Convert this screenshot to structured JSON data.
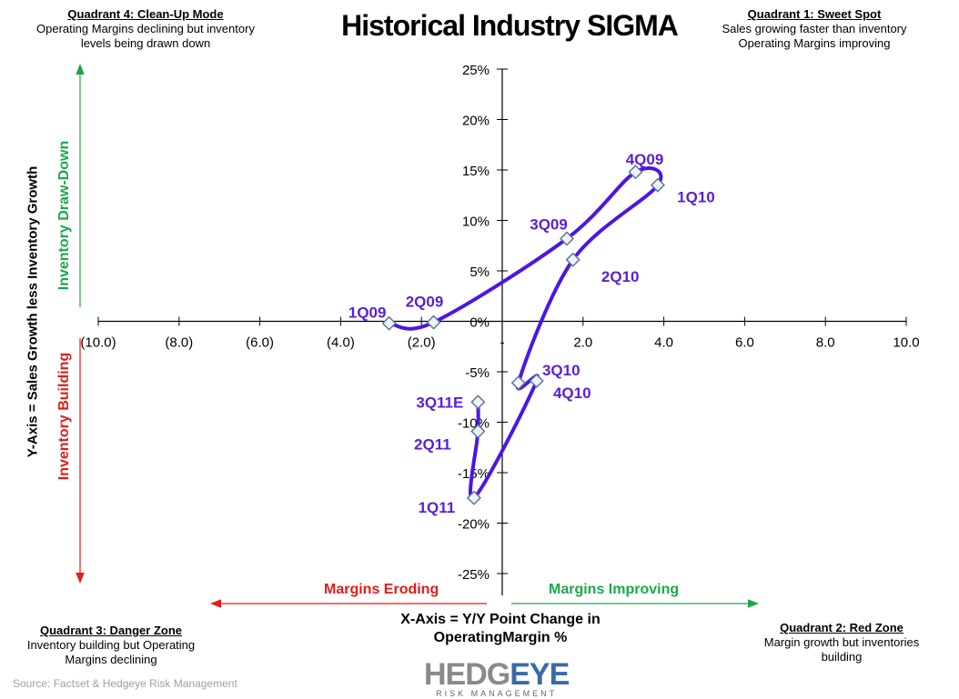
{
  "title": "Historical Industry SIGMA",
  "quadrants": {
    "q4": {
      "title": "Quadrant 4: Clean-Up Mode",
      "line1": "Operating Margins declining but inventory",
      "line2": "levels being drawn down"
    },
    "q1": {
      "title": "Quadrant 1: Sweet Spot",
      "line1": "Sales growing faster than  inventory",
      "line2": "Operating Margins improving"
    },
    "q3": {
      "title": "Quadrant 3: Danger Zone",
      "line1": "Inventory building  but Operating",
      "line2": "Margins declining"
    },
    "q2": {
      "title": "Quadrant 2: Red Zone",
      "line1": "Margin growth but inventories",
      "line2": "building"
    }
  },
  "annotations": {
    "y_axis_title": "Y-Axis = Sales Growth less Inventory Growth",
    "inventory_drawdown": "Inventory Draw-Down",
    "inventory_building": "Inventory Building",
    "margins_eroding": "Margins Eroding",
    "margins_improving": "Margins Improving",
    "x_axis_title_line1": "X-Axis = Y/Y Point Change in",
    "x_axis_title_line2": "OperatingMargin %"
  },
  "colors": {
    "series": "#4b16e6",
    "label": "#5a1ed8",
    "green": "#1aa84a",
    "red": "#e51a1a"
  },
  "source": "Source: Factset & Hedgeye Risk Management",
  "logo": {
    "word1": "HEDG",
    "word2": "EYE",
    "tagline": "RISK MANAGEMENT"
  },
  "chart_data": {
    "type": "line",
    "title": "Historical Industry SIGMA",
    "xlabel": "X-Axis = Y/Y Point Change in OperatingMargin %",
    "ylabel": "Y-Axis = Sales Growth less Inventory Growth",
    "xlim": [
      -10,
      10
    ],
    "ylim": [
      -25,
      25
    ],
    "x_ticks": [
      "(10.0)",
      "(8.0)",
      "(6.0)",
      "(4.0)",
      "(2.0)",
      "-",
      "2.0",
      "4.0",
      "6.0",
      "8.0",
      "10.0"
    ],
    "x_tick_values": [
      -10,
      -8,
      -6,
      -4,
      -2,
      0,
      2,
      4,
      6,
      8,
      10
    ],
    "y_ticks": [
      "25%",
      "20%",
      "15%",
      "10%",
      "5%",
      "0%",
      "-5%",
      "-10%",
      "-15%",
      "-20%",
      "-25%"
    ],
    "y_tick_values": [
      25,
      20,
      15,
      10,
      5,
      0,
      -5,
      -10,
      -15,
      -20,
      -25
    ],
    "grid": false,
    "smoothed": true,
    "points": [
      {
        "label": "1Q09",
        "x": -2.8,
        "y": -0.2
      },
      {
        "label": "2Q09",
        "x": -1.7,
        "y": -0.1
      },
      {
        "label": "3Q09",
        "x": 1.6,
        "y": 8.2
      },
      {
        "label": "4Q09",
        "x": 3.3,
        "y": 14.8
      },
      {
        "label": "1Q10",
        "x": 3.85,
        "y": 13.5
      },
      {
        "label": "2Q10",
        "x": 1.75,
        "y": 6.1
      },
      {
        "label": "3Q10",
        "x": 0.4,
        "y": -6.1
      },
      {
        "label": "4Q10",
        "x": 0.85,
        "y": -5.9
      },
      {
        "label": "1Q11",
        "x": -0.7,
        "y": -17.5
      },
      {
        "label": "2Q11",
        "x": -0.6,
        "y": -10.9
      },
      {
        "label": "3Q11E",
        "x": -0.6,
        "y": -8.0
      }
    ]
  }
}
